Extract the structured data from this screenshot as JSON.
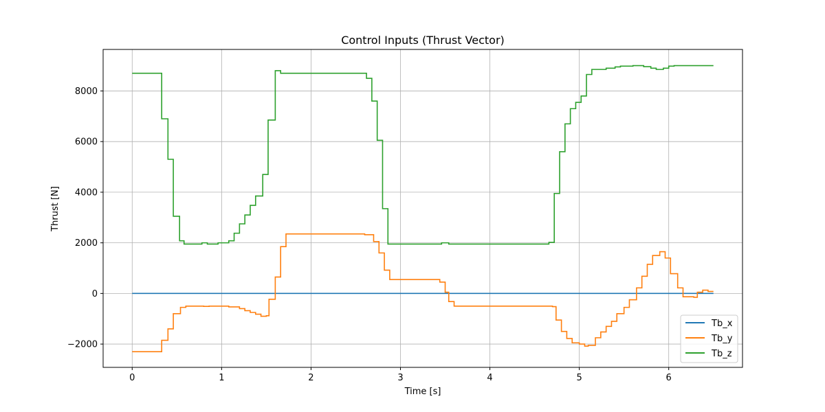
{
  "chart_data": {
    "type": "line",
    "title": "Control Inputs (Thrust Vector)",
    "xlabel": "Time [s]",
    "ylabel": "Thrust [N]",
    "xlim": [
      -0.325,
      6.825
    ],
    "ylim": [
      -2920,
      9640
    ],
    "xticks": [
      0,
      1,
      2,
      3,
      4,
      5,
      6
    ],
    "yticks": [
      -2000,
      0,
      2000,
      4000,
      6000,
      8000
    ],
    "ytick_labels": [
      "−2000",
      "0",
      "2000",
      "4000",
      "6000",
      "8000"
    ],
    "grid": true,
    "legend_position": "lower-right",
    "step": true,
    "series": [
      {
        "name": "Tb_x",
        "color": "#1f77b4",
        "points": [
          [
            0,
            0
          ],
          [
            6.5,
            0
          ]
        ]
      },
      {
        "name": "Tb_y",
        "color": "#ff7f0e",
        "points": [
          [
            0,
            -2300
          ],
          [
            0.33,
            -1850
          ],
          [
            0.4,
            -1400
          ],
          [
            0.46,
            -800
          ],
          [
            0.54,
            -550
          ],
          [
            0.6,
            -500
          ],
          [
            0.8,
            -510
          ],
          [
            0.86,
            -500
          ],
          [
            1.08,
            -530
          ],
          [
            1.2,
            -600
          ],
          [
            1.26,
            -680
          ],
          [
            1.32,
            -750
          ],
          [
            1.38,
            -820
          ],
          [
            1.44,
            -900
          ],
          [
            1.5,
            -880
          ],
          [
            1.53,
            -230
          ],
          [
            1.6,
            650
          ],
          [
            1.66,
            1850
          ],
          [
            1.72,
            2350
          ],
          [
            2.6,
            2320
          ],
          [
            2.7,
            2050
          ],
          [
            2.76,
            1600
          ],
          [
            2.82,
            920
          ],
          [
            2.88,
            550
          ],
          [
            3.44,
            450
          ],
          [
            3.5,
            50
          ],
          [
            3.54,
            -320
          ],
          [
            3.6,
            -500
          ],
          [
            4.7,
            -520
          ],
          [
            4.74,
            -1050
          ],
          [
            4.8,
            -1500
          ],
          [
            4.86,
            -1780
          ],
          [
            4.92,
            -1950
          ],
          [
            5.0,
            -2000
          ],
          [
            5.06,
            -2080
          ],
          [
            5.1,
            -2050
          ],
          [
            5.18,
            -1750
          ],
          [
            5.24,
            -1520
          ],
          [
            5.3,
            -1300
          ],
          [
            5.36,
            -1100
          ],
          [
            5.42,
            -800
          ],
          [
            5.5,
            -550
          ],
          [
            5.56,
            -250
          ],
          [
            5.64,
            220
          ],
          [
            5.7,
            680
          ],
          [
            5.76,
            1150
          ],
          [
            5.82,
            1500
          ],
          [
            5.9,
            1650
          ],
          [
            5.96,
            1400
          ],
          [
            6.02,
            780
          ],
          [
            6.1,
            220
          ],
          [
            6.16,
            -130
          ],
          [
            6.28,
            -150
          ],
          [
            6.32,
            50
          ],
          [
            6.38,
            130
          ],
          [
            6.44,
            80
          ],
          [
            6.5,
            80
          ]
        ]
      },
      {
        "name": "Tb_z",
        "color": "#2ca02c",
        "points": [
          [
            0,
            8700
          ],
          [
            0.33,
            6900
          ],
          [
            0.4,
            5300
          ],
          [
            0.46,
            3050
          ],
          [
            0.53,
            2080
          ],
          [
            0.58,
            1950
          ],
          [
            0.78,
            2000
          ],
          [
            0.84,
            1950
          ],
          [
            0.96,
            2000
          ],
          [
            1.08,
            2080
          ],
          [
            1.14,
            2380
          ],
          [
            1.2,
            2750
          ],
          [
            1.26,
            3100
          ],
          [
            1.32,
            3480
          ],
          [
            1.38,
            3850
          ],
          [
            1.46,
            4700
          ],
          [
            1.52,
            6850
          ],
          [
            1.6,
            8800
          ],
          [
            1.66,
            8700
          ],
          [
            2.62,
            8500
          ],
          [
            2.68,
            7600
          ],
          [
            2.74,
            6050
          ],
          [
            2.8,
            3350
          ],
          [
            2.86,
            1950
          ],
          [
            3.46,
            2000
          ],
          [
            3.54,
            1950
          ],
          [
            4.66,
            2020
          ],
          [
            4.72,
            3950
          ],
          [
            4.78,
            5600
          ],
          [
            4.84,
            6700
          ],
          [
            4.9,
            7300
          ],
          [
            4.96,
            7550
          ],
          [
            5.02,
            7800
          ],
          [
            5.08,
            8650
          ],
          [
            5.14,
            8850
          ],
          [
            5.3,
            8900
          ],
          [
            5.4,
            8950
          ],
          [
            5.46,
            8980
          ],
          [
            5.6,
            9000
          ],
          [
            5.72,
            8960
          ],
          [
            5.8,
            8900
          ],
          [
            5.86,
            8850
          ],
          [
            5.94,
            8900
          ],
          [
            6.0,
            8980
          ],
          [
            6.06,
            9000
          ],
          [
            6.5,
            9000
          ]
        ]
      }
    ]
  }
}
